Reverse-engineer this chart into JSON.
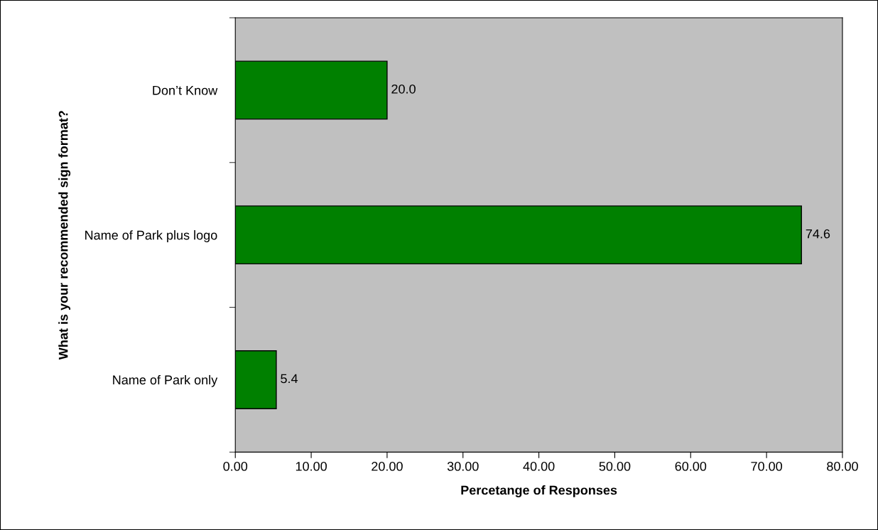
{
  "chart_data": {
    "type": "bar",
    "orientation": "horizontal",
    "ylabel": "What is your recommended sign format?",
    "xlabel": "Percetange of Responses",
    "categories": [
      "Don’t Know",
      "Name of Park plus logo",
      "Name of Park only"
    ],
    "values": [
      20.0,
      74.6,
      5.4
    ],
    "value_labels": [
      "20.0",
      "74.6",
      "5.4"
    ],
    "color": "#008000",
    "xlim": [
      0,
      80
    ],
    "xticks": [
      {
        "value": 0,
        "label": "0.00"
      },
      {
        "value": 10,
        "label": "10.00"
      },
      {
        "value": 20,
        "label": "20.00"
      },
      {
        "value": 30,
        "label": "30.00"
      },
      {
        "value": 40,
        "label": "40.00"
      },
      {
        "value": 50,
        "label": "50.00"
      },
      {
        "value": 60,
        "label": "60.00"
      },
      {
        "value": 70,
        "label": "70.00"
      },
      {
        "value": 80,
        "label": "80.00"
      }
    ],
    "grid": false,
    "legend": false
  }
}
